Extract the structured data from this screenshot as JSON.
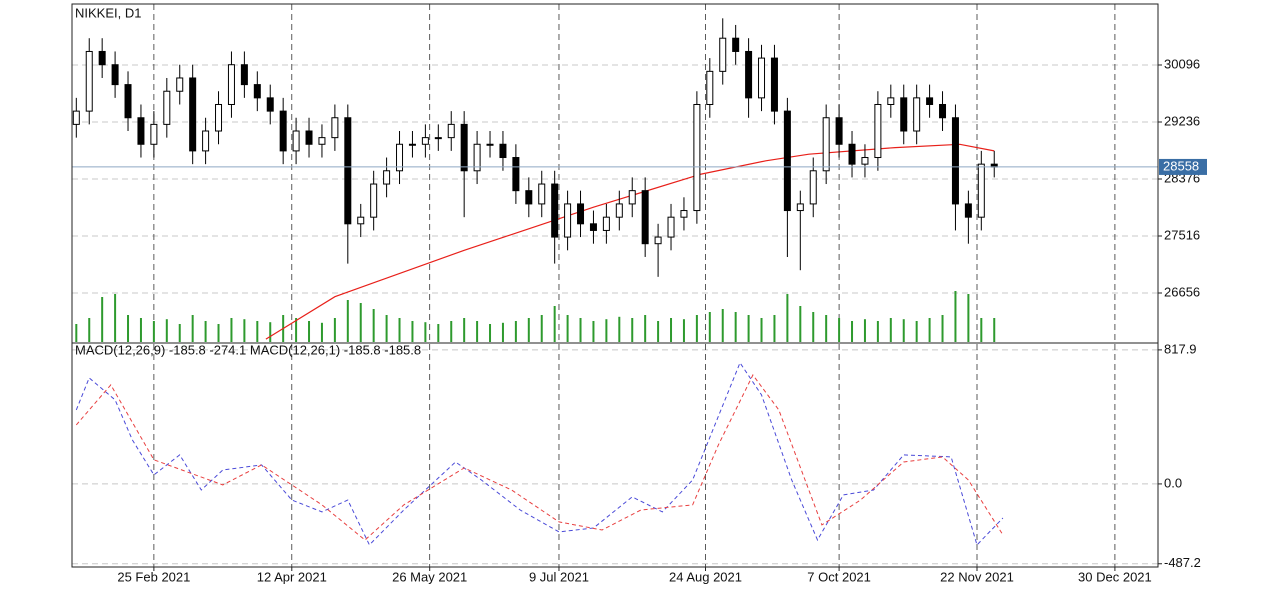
{
  "chart_data": [
    {
      "type": "candlestick",
      "title": "NIKKEI, D1",
      "x": [
        0,
        3,
        6,
        9,
        12,
        15,
        18,
        21,
        24,
        27,
        30,
        33,
        36,
        39,
        42,
        45,
        48,
        51,
        54,
        57,
        60,
        63,
        66,
        69,
        72,
        75,
        78,
        81,
        84,
        87,
        90,
        93,
        96,
        99,
        102,
        105,
        108,
        111,
        114,
        117,
        120,
        123,
        126,
        129,
        132,
        135,
        138,
        141,
        144,
        147,
        150,
        153,
        156,
        159,
        162,
        165,
        168,
        171,
        174,
        177,
        180,
        183,
        186,
        189,
        192,
        195,
        198,
        201,
        204,
        207,
        210,
        213
      ],
      "open": [
        29200,
        29400,
        30300,
        30100,
        29800,
        29300,
        28900,
        29200,
        29700,
        29900,
        28800,
        29100,
        29500,
        30100,
        29800,
        29600,
        29400,
        28800,
        29100,
        28900,
        29000,
        29300,
        27700,
        27800,
        28300,
        28500,
        28900,
        28900,
        29000,
        29000,
        29200,
        28500,
        28900,
        28900,
        28700,
        28200,
        28000,
        28300,
        27500,
        28000,
        27700,
        27600,
        27800,
        28000,
        28200,
        27400,
        27500,
        27800,
        27900,
        29500,
        30000,
        30500,
        30300,
        29600,
        30200,
        29400,
        27900,
        28000,
        28500,
        29300,
        28900,
        28600,
        28700,
        29500,
        29600,
        29100,
        29600,
        29500,
        29300,
        28000,
        27800,
        28600
      ],
      "high": [
        29600,
        30500,
        30500,
        30300,
        30000,
        29500,
        29400,
        29900,
        30100,
        30100,
        29300,
        29700,
        30300,
        30300,
        30000,
        29800,
        29600,
        29300,
        29300,
        29200,
        29500,
        29500,
        28000,
        28500,
        28700,
        29100,
        29100,
        29200,
        29200,
        29400,
        29400,
        29100,
        29100,
        29100,
        28900,
        28400,
        28500,
        28500,
        28200,
        28200,
        27900,
        28000,
        28200,
        28400,
        28400,
        27700,
        28000,
        28100,
        29700,
        30200,
        30800,
        30700,
        30500,
        30400,
        30400,
        29600,
        28200,
        28700,
        29500,
        29500,
        29100,
        28900,
        29700,
        29800,
        29800,
        29800,
        29800,
        29700,
        29500,
        28200,
        28800,
        28800
      ],
      "low": [
        29000,
        29200,
        29900,
        29600,
        29100,
        28700,
        28700,
        29000,
        29500,
        28600,
        28600,
        28900,
        29300,
        29600,
        29400,
        29200,
        28600,
        28600,
        28700,
        28700,
        28800,
        27100,
        27500,
        27600,
        28100,
        28300,
        28700,
        28700,
        28800,
        28800,
        27800,
        28300,
        28700,
        28500,
        28000,
        27800,
        27800,
        27100,
        27300,
        27500,
        27400,
        27400,
        27600,
        27800,
        27200,
        26900,
        27300,
        27600,
        27700,
        29300,
        29800,
        30100,
        29300,
        29400,
        29200,
        27200,
        27000,
        27800,
        28300,
        28700,
        28400,
        28400,
        28500,
        29300,
        28900,
        28900,
        29300,
        29100,
        27600,
        27400,
        27600,
        28400
      ],
      "close": [
        29400,
        30300,
        30100,
        29800,
        29300,
        28900,
        29200,
        29700,
        29900,
        28800,
        29100,
        29500,
        30100,
        29800,
        29600,
        29400,
        28800,
        29100,
        28900,
        29000,
        29300,
        27700,
        27800,
        28300,
        28500,
        28900,
        28900,
        29000,
        29000,
        29200,
        28500,
        28900,
        28900,
        28700,
        28200,
        28000,
        28300,
        27500,
        28000,
        27700,
        27600,
        27800,
        28000,
        28200,
        27400,
        27500,
        27800,
        27900,
        29500,
        30000,
        30500,
        30300,
        29600,
        30200,
        29400,
        27900,
        28000,
        28500,
        29300,
        28900,
        28600,
        28700,
        29500,
        29600,
        29100,
        29600,
        29500,
        29300,
        28000,
        27800,
        28600,
        28558
      ],
      "up_color": "#ffffff",
      "down_color": "#000000",
      "volume": {
        "color": "#2e9a2e",
        "ylim": [
          0,
          100
        ],
        "values": [
          30,
          40,
          75,
          80,
          45,
          40,
          35,
          38,
          30,
          45,
          35,
          30,
          40,
          38,
          35,
          33,
          45,
          40,
          35,
          32,
          40,
          70,
          65,
          55,
          45,
          40,
          35,
          33,
          30,
          35,
          40,
          35,
          30,
          32,
          35,
          40,
          45,
          60,
          45,
          40,
          35,
          38,
          42,
          40,
          45,
          35,
          40,
          38,
          45,
          50,
          55,
          50,
          45,
          40,
          45,
          80,
          60,
          50,
          45,
          40,
          35,
          38,
          35,
          40,
          38,
          35,
          40,
          45,
          85,
          80,
          40,
          40
        ]
      },
      "series": [
        {
          "color": "#e8201a",
          "x": [
            44,
            60,
            90,
            120,
            130,
            145,
            160,
            170,
            190,
            205,
            213
          ],
          "values": [
            25960,
            26600,
            27300,
            27950,
            28150,
            28450,
            28650,
            28750,
            28850,
            28900,
            28800
          ]
        }
      ],
      "last_price": 28558,
      "last_price_color": "#3a6ea5",
      "xlim": [
        -1,
        251
      ],
      "ylim": [
        25917,
        31016
      ],
      "yticks": [
        30096,
        29236,
        28376,
        27516,
        26656
      ],
      "grid": true
    },
    {
      "type": "line",
      "title": "MACD(12,26,9) -185.8 -274.1 MACD(12,26,1) -185.8 -185.8",
      "series": [
        {
          "color": "#4a4ad8",
          "x": [
            0,
            3,
            9,
            13,
            18,
            24,
            29,
            34,
            43,
            50,
            57,
            63,
            68,
            76,
            88,
            94,
            103,
            112,
            120,
            129,
            136,
            143,
            154,
            159,
            166,
            172,
            178,
            185,
            192,
            203,
            209,
            215
          ],
          "values": [
            452,
            647,
            513,
            269,
            55,
            177,
            -37,
            85,
            116,
            -98,
            -171,
            -98,
            -372,
            -159,
            134,
            24,
            -159,
            -293,
            -269,
            -79,
            -171,
            24,
            739,
            543,
            24,
            -342,
            -67,
            -37,
            177,
            165,
            -372,
            -208
          ]
        },
        {
          "color": "#e84040",
          "x": [
            0,
            8,
            18,
            34,
            43,
            57,
            67,
            76,
            90,
            101,
            112,
            122,
            131,
            143,
            149,
            157,
            163,
            173,
            182,
            192,
            201,
            207,
            215
          ],
          "values": [
            360,
            604,
            147,
            -6,
            116,
            -128,
            -342,
            -128,
            98,
            -37,
            -232,
            -281,
            -159,
            -128,
            238,
            665,
            452,
            -250,
            -98,
            134,
            165,
            24,
            -311
          ]
        }
      ],
      "xlim": [
        -1,
        251
      ],
      "ylim": [
        -507,
        860
      ],
      "yticks": [
        817.9,
        {
          "value": 0,
          "label": "0.0"
        },
        -487.2
      ],
      "xticks": [
        {
          "value": 18,
          "label": "25 Feb 2021"
        },
        {
          "value": 50,
          "label": "12 Apr 2021"
        },
        {
          "value": 82,
          "label": "26 May 2021"
        },
        {
          "value": 112,
          "label": "9 Jul 2021"
        },
        {
          "value": 146,
          "label": "24 Aug 2021"
        },
        {
          "value": 177,
          "label": "7 Oct 2021"
        },
        {
          "value": 209,
          "label": "22 Nov 2021"
        },
        {
          "value": 241,
          "label": "30 Dec 2021"
        }
      ],
      "grid": true
    }
  ]
}
